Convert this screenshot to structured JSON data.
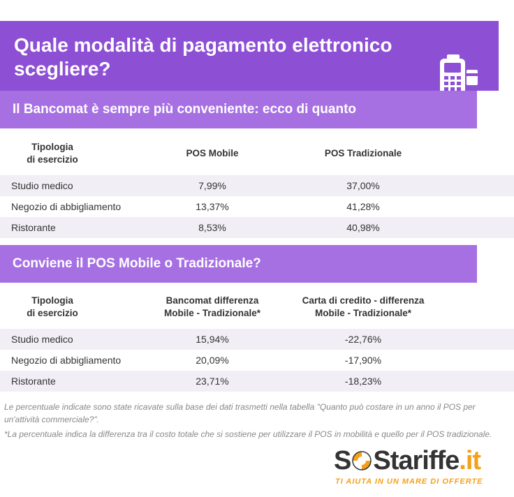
{
  "header": {
    "title": "Quale modalità di pagamento elettronico scegliere?",
    "icon": "pos-terminal-icon"
  },
  "section1": {
    "title": "Il Bancomat è sempre più conveniente: ecco di quanto",
    "columns": [
      "Tipologia\ndi esercizio",
      "POS Mobile",
      "POS Tradizionale"
    ],
    "rows": [
      [
        "Studio medico",
        "7,99%",
        "37,00%"
      ],
      [
        "Negozio di abbigliamento",
        "13,37%",
        "41,28%"
      ],
      [
        "Ristorante",
        "8,53%",
        "40,98%"
      ]
    ]
  },
  "section2": {
    "title": "Conviene il POS Mobile o Tradizionale?",
    "columns": [
      "Tipologia\ndi esercizio",
      "Bancomat differenza\nMobile - Tradizionale*",
      "Carta di credito - differenza\nMobile - Tradizionale*"
    ],
    "rows": [
      [
        "Studio medico",
        "15,94%",
        "-22,76%"
      ],
      [
        "Negozio di abbigliamento",
        "20,09%",
        "-17,90%"
      ],
      [
        "Ristorante",
        "23,71%",
        "-18,23%"
      ]
    ]
  },
  "notes": [
    "Le percentuale indicate sono state ricavate sulla base dei dati trasmetti nella tabella \"Quanto può costare in un anno il POS per un'attività commerciale?\".",
    "*La percentuale indica la differenza tra il costo totale che si sostiene per utilizzare il POS in mobilità e quello per il POS tradizionale."
  ],
  "logo": {
    "part1": "S",
    "part2": "S",
    "part3": "tariffe",
    "part4": ".it",
    "tagline": "TI AIUTA IN UN MARE DI OFFERTE"
  },
  "colors": {
    "header": "#8d4fd4",
    "section": "#a670e3",
    "row_alt": "#f1eef5",
    "logo_orange": "#f6a01a"
  }
}
